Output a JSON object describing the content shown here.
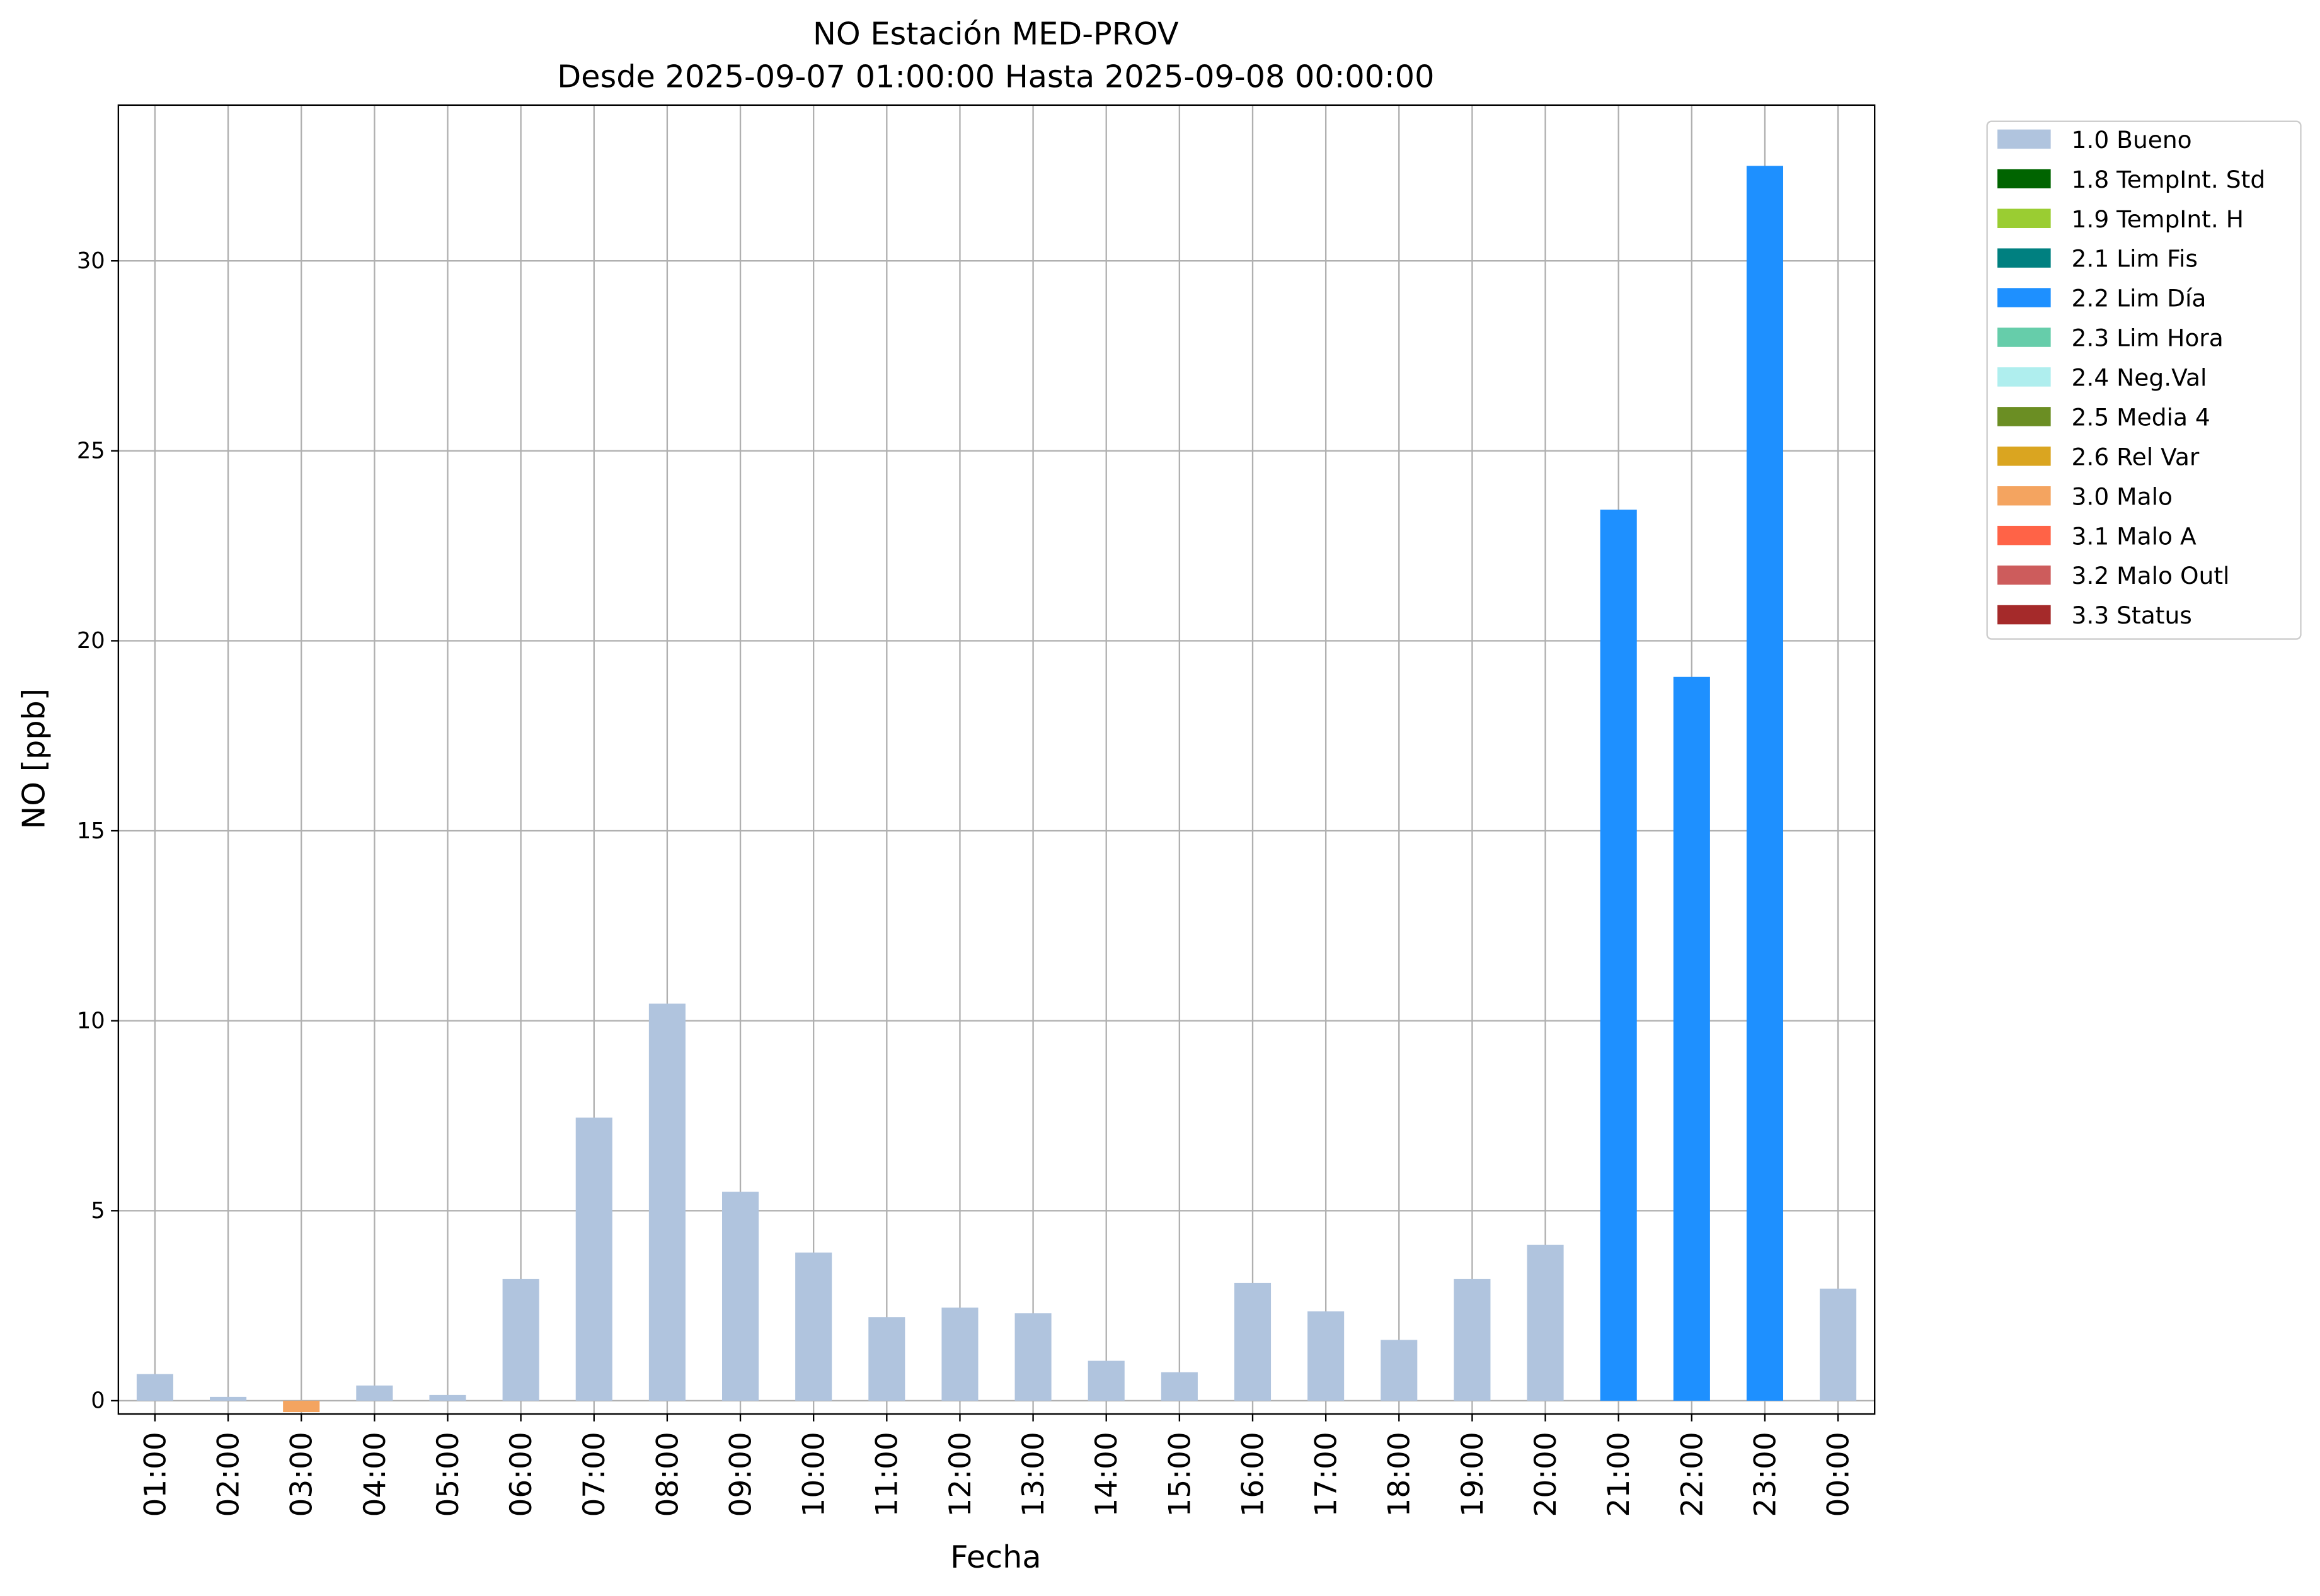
{
  "chart_data": {
    "type": "bar",
    "stacked": true,
    "title": "NO Estación MED-PROV",
    "subtitle": "Desde 2025-09-07 01:00:00 Hasta 2025-09-08 00:00:00",
    "x_label": "Fecha",
    "y_label": "NO [ppb]",
    "categories": [
      "01:00",
      "02:00",
      "03:00",
      "04:00",
      "05:00",
      "06:00",
      "07:00",
      "08:00",
      "09:00",
      "10:00",
      "11:00",
      "12:00",
      "13:00",
      "14:00",
      "15:00",
      "16:00",
      "17:00",
      "18:00",
      "19:00",
      "20:00",
      "21:00",
      "22:00",
      "23:00",
      "00:00"
    ],
    "series": [
      {
        "name": "1.0 Bueno",
        "color": "#b0c4de",
        "values": [
          0.7,
          0.1,
          null,
          0.4,
          0.15,
          3.2,
          7.45,
          10.45,
          5.5,
          3.9,
          2.2,
          2.45,
          2.3,
          1.05,
          0.75,
          3.1,
          2.35,
          1.6,
          3.2,
          4.1,
          null,
          null,
          null,
          2.95
        ]
      },
      {
        "name": "1.8 TempInt. Std",
        "color": "#006400",
        "values": [
          null,
          null,
          null,
          null,
          null,
          null,
          null,
          null,
          null,
          null,
          null,
          null,
          null,
          null,
          null,
          null,
          null,
          null,
          null,
          null,
          null,
          null,
          null,
          null
        ]
      },
      {
        "name": "1.9 TempInt. H",
        "color": "#9acd32",
        "values": [
          null,
          null,
          null,
          null,
          null,
          null,
          null,
          null,
          null,
          null,
          null,
          null,
          null,
          null,
          null,
          null,
          null,
          null,
          null,
          null,
          null,
          null,
          null,
          null
        ]
      },
      {
        "name": "2.1 Lim Fis",
        "color": "#008080",
        "values": [
          null,
          null,
          null,
          null,
          null,
          null,
          null,
          null,
          null,
          null,
          null,
          null,
          null,
          null,
          null,
          null,
          null,
          null,
          null,
          null,
          null,
          null,
          null,
          null
        ]
      },
      {
        "name": "2.2 Lim Día",
        "color": "#1e90ff",
        "values": [
          null,
          null,
          null,
          null,
          null,
          null,
          null,
          null,
          null,
          null,
          null,
          null,
          null,
          null,
          null,
          null,
          null,
          null,
          null,
          null,
          23.45,
          19.05,
          32.5,
          null
        ]
      },
      {
        "name": "2.3 Lim Hora",
        "color": "#66cdaa",
        "values": [
          null,
          null,
          null,
          null,
          null,
          null,
          null,
          null,
          null,
          null,
          null,
          null,
          null,
          null,
          null,
          null,
          null,
          null,
          null,
          null,
          null,
          null,
          null,
          null
        ]
      },
      {
        "name": "2.4 Neg.Val",
        "color": "#afeeee",
        "values": [
          null,
          null,
          null,
          null,
          null,
          null,
          null,
          null,
          null,
          null,
          null,
          null,
          null,
          null,
          null,
          null,
          null,
          null,
          null,
          null,
          null,
          null,
          null,
          null
        ]
      },
      {
        "name": "2.5 Media 4",
        "color": "#6b8e23",
        "values": [
          null,
          null,
          null,
          null,
          null,
          null,
          null,
          null,
          null,
          null,
          null,
          null,
          null,
          null,
          null,
          null,
          null,
          null,
          null,
          null,
          null,
          null,
          null,
          null
        ]
      },
      {
        "name": "2.6 Rel Var",
        "color": "#daa520",
        "values": [
          null,
          null,
          null,
          null,
          null,
          null,
          null,
          null,
          null,
          null,
          null,
          null,
          null,
          null,
          null,
          null,
          null,
          null,
          null,
          null,
          null,
          null,
          null,
          null
        ]
      },
      {
        "name": "3.0 Malo",
        "color": "#f4a460",
        "values": [
          null,
          null,
          -0.3,
          null,
          null,
          null,
          null,
          null,
          null,
          null,
          null,
          null,
          null,
          null,
          null,
          null,
          null,
          null,
          null,
          null,
          null,
          null,
          null,
          null
        ]
      },
      {
        "name": "3.1 Malo A",
        "color": "#ff6347",
        "values": [
          null,
          null,
          null,
          null,
          null,
          null,
          null,
          null,
          null,
          null,
          null,
          null,
          null,
          null,
          null,
          null,
          null,
          null,
          null,
          null,
          null,
          null,
          null,
          null
        ]
      },
      {
        "name": "3.2 Malo Outl",
        "color": "#cd5c5c",
        "values": [
          null,
          null,
          null,
          null,
          null,
          null,
          null,
          null,
          null,
          null,
          null,
          null,
          null,
          null,
          null,
          null,
          null,
          null,
          null,
          null,
          null,
          null,
          null,
          null
        ]
      },
      {
        "name": "3.3 Status",
        "color": "#a52a2a",
        "values": [
          null,
          null,
          null,
          null,
          null,
          null,
          null,
          null,
          null,
          null,
          null,
          null,
          null,
          null,
          null,
          null,
          null,
          null,
          null,
          null,
          null,
          null,
          null,
          null
        ]
      }
    ],
    "ylim": [
      -0.35,
      34.1
    ],
    "yticks": [
      0,
      5,
      10,
      15,
      20,
      25,
      30
    ],
    "grid": true,
    "legend": "outside-right"
  }
}
